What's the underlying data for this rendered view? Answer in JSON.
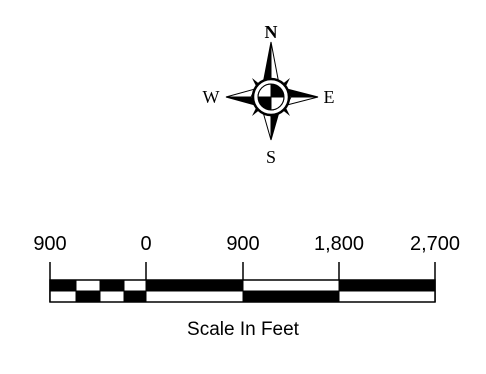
{
  "compass": {
    "north": "N",
    "south": "S",
    "east": "E",
    "west": "W"
  },
  "scale_bar": {
    "labels": [
      "900",
      "0",
      "900",
      "1,800",
      "2,700"
    ],
    "caption": "Scale In Feet"
  }
}
